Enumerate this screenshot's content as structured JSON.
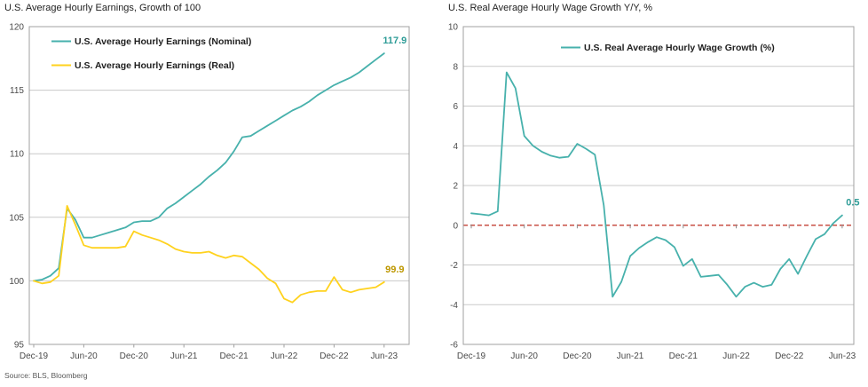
{
  "page": {
    "source_note": "Source: BLS, Bloomberg"
  },
  "colors": {
    "teal_line": "#47b1ac",
    "yellow_line": "#ffd21e",
    "zero_dashed_line": "#c85045",
    "gridline": "#c9c9c9",
    "plot_border": "#a0a0a0",
    "axis_text": "#4a4a4a"
  },
  "chart_data": [
    {
      "type": "line",
      "title": "U.S. Average Hourly Earnings, Growth of 100",
      "x_tick_labels": [
        "Dec-19",
        "Jun-20",
        "Dec-20",
        "Jun-21",
        "Dec-21",
        "Jun-22",
        "Dec-22",
        "Jun-23"
      ],
      "x_tick_interval_months": 6,
      "ylim": [
        95,
        120
      ],
      "yticks": [
        95,
        100,
        105,
        110,
        115,
        120
      ],
      "grid": true,
      "legend_position": "top-left-inside",
      "series": [
        {
          "name": "U.S. Average Hourly Earnings (Nominal)",
          "color": "#47b1ac",
          "end_label": "117.9",
          "end_label_color": "#2e9c97",
          "values": [
            100.0,
            100.1,
            100.4,
            101.0,
            105.7,
            104.8,
            103.4,
            103.4,
            103.6,
            103.8,
            104.0,
            104.2,
            104.6,
            104.7,
            104.7,
            105.0,
            105.7,
            106.1,
            106.6,
            107.1,
            107.6,
            108.2,
            108.7,
            109.3,
            110.2,
            111.3,
            111.4,
            111.8,
            112.2,
            112.6,
            113.0,
            113.4,
            113.7,
            114.1,
            114.6,
            115.0,
            115.4,
            115.7,
            116.0,
            116.4,
            116.9,
            117.4,
            117.9
          ]
        },
        {
          "name": "U.S. Average Hourly Earnings (Real)",
          "color": "#ffd21e",
          "end_label": "99.9",
          "end_label_color": "#bd9700",
          "values": [
            100.0,
            99.8,
            99.9,
            100.4,
            105.9,
            104.4,
            102.8,
            102.6,
            102.6,
            102.6,
            102.6,
            102.7,
            103.9,
            103.6,
            103.4,
            103.2,
            102.9,
            102.5,
            102.3,
            102.2,
            102.2,
            102.3,
            102.0,
            101.8,
            102.0,
            101.9,
            101.4,
            100.9,
            100.2,
            99.8,
            98.6,
            98.3,
            98.9,
            99.1,
            99.2,
            99.2,
            100.3,
            99.3,
            99.1,
            99.3,
            99.4,
            99.5,
            99.9
          ]
        }
      ]
    },
    {
      "type": "line",
      "title": "U.S. Real Average Hourly Wage Growth Y/Y, %",
      "x_tick_labels": [
        "Dec-19",
        "Jun-20",
        "Dec-20",
        "Jun-21",
        "Dec-21",
        "Jun-22",
        "Dec-22",
        "Jun-23"
      ],
      "x_tick_interval_months": 6,
      "ylim": [
        -6,
        10
      ],
      "yticks": [
        -6,
        -4,
        -2,
        0,
        2,
        4,
        6,
        8,
        10
      ],
      "grid": true,
      "zero_line": {
        "style": "dashed",
        "color": "#c85045"
      },
      "legend_position": "top-center-inside",
      "series": [
        {
          "name": "U.S. Real Average Hourly Wage Growth (%)",
          "color": "#47b1ac",
          "end_label": "0.5",
          "end_label_color": "#2e9c97",
          "values": [
            0.6,
            0.55,
            0.5,
            0.7,
            7.7,
            6.9,
            4.5,
            4.0,
            3.7,
            3.5,
            3.4,
            3.45,
            4.1,
            3.85,
            3.55,
            1.0,
            -3.6,
            -2.85,
            -1.55,
            -1.15,
            -0.85,
            -0.6,
            -0.75,
            -1.1,
            -2.05,
            -1.7,
            -2.6,
            -2.55,
            -2.5,
            -3.0,
            -3.6,
            -3.1,
            -2.9,
            -3.1,
            -3.0,
            -2.2,
            -1.7,
            -2.45,
            -1.55,
            -0.7,
            -0.45,
            0.1,
            0.5
          ]
        }
      ]
    }
  ]
}
